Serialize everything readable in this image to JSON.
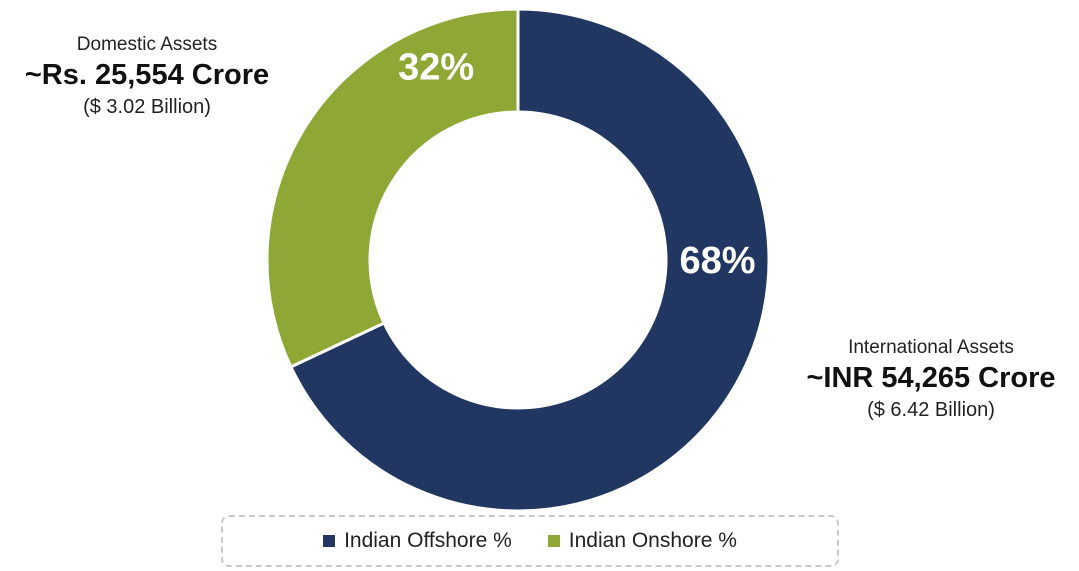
{
  "chart_data": {
    "type": "pie",
    "variant": "donut",
    "series": [
      {
        "name": "Indian Offshore %",
        "value": 68,
        "label": "68%",
        "color": "#213762"
      },
      {
        "name": "Indian Onshore %",
        "value": 32,
        "label": "32%",
        "color": "#8ea735"
      }
    ],
    "legend_position": "bottom"
  },
  "callouts": {
    "domestic": {
      "caption": "Domestic Assets",
      "amount": "~Rs. 25,554 Crore",
      "usd": "($ 3.02 Billion)"
    },
    "international": {
      "caption": "International Assets",
      "amount": "~INR 54,265 Crore",
      "usd": "($ 6.42 Billion)"
    }
  },
  "legend": {
    "items": [
      {
        "label": "Indian Offshore %",
        "color": "#213762"
      },
      {
        "label": "Indian Onshore %",
        "color": "#8ea735"
      }
    ]
  }
}
